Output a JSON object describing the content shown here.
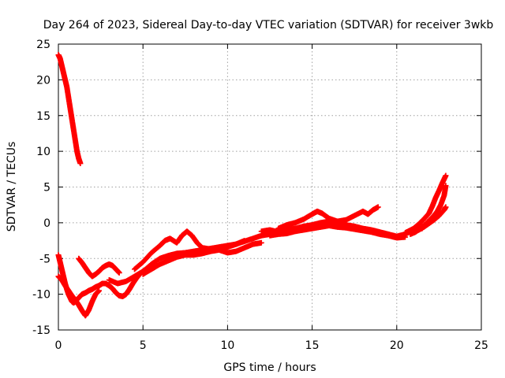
{
  "chart_data": {
    "type": "scatter",
    "title": "Day 264 of 2023, Sidereal Day-to-day VTEC variation (SDTVAR) for receiver 3wkb",
    "xlabel": "GPS time / hours",
    "ylabel": "SDTVAR / TECUs",
    "xlim": [
      0,
      25
    ],
    "ylim": [
      -15,
      25
    ],
    "xticks": [
      0,
      5,
      10,
      15,
      20,
      25
    ],
    "yticks": [
      -15,
      -10,
      -5,
      0,
      5,
      10,
      15,
      20,
      25
    ],
    "grid": true,
    "marker": "plus",
    "color": "#ff0000",
    "series": [
      {
        "name": "high-start arc",
        "x": [
          0.0,
          0.1,
          0.2,
          0.3,
          0.4,
          0.5,
          0.6,
          0.7,
          0.8,
          0.9,
          1.0,
          1.1,
          1.2,
          1.3
        ],
        "y": [
          23.5,
          23.0,
          22.0,
          21.0,
          20.0,
          19.0,
          17.5,
          16.0,
          14.5,
          13.0,
          11.5,
          10.0,
          9.0,
          8.3
        ]
      },
      {
        "name": "early dip",
        "x": [
          0.0,
          0.1,
          0.2,
          0.3,
          0.4,
          0.5,
          0.6,
          0.7,
          0.8,
          0.9,
          1.0,
          1.2,
          1.4,
          1.6,
          1.8,
          2.0,
          2.2,
          2.4,
          2.6,
          2.8,
          3.0,
          3.2,
          3.4,
          3.6,
          3.8,
          4.0,
          4.2,
          4.4,
          4.6,
          4.8,
          5.0
        ],
        "y": [
          -4.5,
          -5.5,
          -6.5,
          -7.5,
          -8.5,
          -9.3,
          -10.0,
          -10.5,
          -11.0,
          -11.2,
          -11.0,
          -10.5,
          -10.0,
          -9.8,
          -9.5,
          -9.3,
          -9.0,
          -8.8,
          -8.5,
          -8.5,
          -8.8,
          -9.2,
          -9.8,
          -10.2,
          -10.3,
          -10.0,
          -9.3,
          -8.5,
          -7.8,
          -7.2,
          -6.8
        ]
      },
      {
        "name": "early dip alt",
        "x": [
          0.0,
          0.2,
          0.4,
          0.6,
          0.8,
          1.0,
          1.2,
          1.4,
          1.6,
          1.8,
          2.0,
          2.2,
          2.4
        ],
        "y": [
          -7.5,
          -8.0,
          -8.8,
          -9.5,
          -10.2,
          -10.8,
          -11.5,
          -12.3,
          -13.0,
          -12.2,
          -11.0,
          -10.0,
          -9.5
        ]
      },
      {
        "name": "bump 1.2-3",
        "x": [
          1.2,
          1.4,
          1.6,
          1.8,
          2.0,
          2.2,
          2.4,
          2.6,
          2.8,
          3.0,
          3.2,
          3.4,
          3.6
        ],
        "y": [
          -5.0,
          -5.6,
          -6.3,
          -7.0,
          -7.5,
          -7.2,
          -6.8,
          -6.3,
          -6.0,
          -5.8,
          -6.0,
          -6.5,
          -7.0
        ]
      },
      {
        "name": "mid climb",
        "x": [
          3.0,
          3.5,
          4.0,
          4.5,
          5.0,
          5.5,
          6.0,
          6.5,
          7.0,
          7.5,
          8.0,
          8.5,
          9.0,
          9.5,
          10.0,
          10.5,
          11.0,
          11.5,
          12.0,
          12.5,
          13.0
        ],
        "y": [
          -8.0,
          -8.5,
          -8.2,
          -7.5,
          -6.8,
          -5.8,
          -5.0,
          -4.6,
          -4.3,
          -4.2,
          -4.0,
          -3.8,
          -3.6,
          -3.4,
          -3.2,
          -3.0,
          -2.6,
          -2.2,
          -1.8,
          -1.6,
          -1.4
        ]
      },
      {
        "name": "mid climb upper",
        "x": [
          4.5,
          5.0,
          5.5,
          6.0,
          6.3,
          6.6,
          7.0,
          7.3,
          7.6,
          7.9,
          8.2,
          8.5,
          9.0,
          9.5,
          10.0,
          10.5,
          11.0
        ],
        "y": [
          -6.5,
          -5.5,
          -4.2,
          -3.2,
          -2.5,
          -2.2,
          -2.8,
          -1.8,
          -1.2,
          -1.8,
          -2.8,
          -3.5,
          -3.7,
          -3.6,
          -3.4,
          -3.0,
          -2.5
        ]
      },
      {
        "name": "mid climb lower",
        "x": [
          5.0,
          5.5,
          6.0,
          6.5,
          7.0,
          7.5,
          8.0,
          8.5,
          9.0,
          9.5,
          10.0,
          10.5,
          11.0,
          11.5,
          12.0
        ],
        "y": [
          -7.2,
          -6.5,
          -5.8,
          -5.3,
          -4.8,
          -4.5,
          -4.5,
          -4.3,
          -4.0,
          -3.8,
          -4.2,
          -4.0,
          -3.5,
          -3.0,
          -2.8
        ]
      },
      {
        "name": "plateau",
        "x": [
          12.0,
          12.5,
          13.0,
          13.5,
          14.0,
          14.5,
          15.0,
          15.5,
          16.0,
          16.5,
          17.0,
          17.5,
          18.0,
          18.5,
          19.0,
          19.5,
          20.0,
          20.5,
          21.0,
          21.5
        ],
        "y": [
          -1.2,
          -1.0,
          -1.3,
          -1.0,
          -0.8,
          -0.5,
          -0.3,
          0.0,
          0.2,
          0.0,
          -0.3,
          -0.5,
          -0.8,
          -1.0,
          -1.3,
          -1.6,
          -1.9,
          -1.6,
          -1.0,
          -0.8
        ]
      },
      {
        "name": "plateau upper",
        "x": [
          13.0,
          13.5,
          14.0,
          14.5,
          15.0,
          15.3,
          15.6,
          16.0,
          16.5,
          17.0,
          17.5,
          18.0,
          18.3,
          18.6,
          18.9
        ],
        "y": [
          -0.8,
          -0.3,
          0.0,
          0.5,
          1.2,
          1.6,
          1.3,
          0.6,
          0.2,
          0.4,
          1.0,
          1.6,
          1.2,
          1.8,
          2.2
        ]
      },
      {
        "name": "plateau lower",
        "x": [
          12.5,
          13.0,
          13.5,
          14.0,
          14.5,
          15.0,
          15.5,
          16.0,
          16.5,
          17.0,
          17.5,
          18.0,
          18.5,
          19.0,
          19.5,
          20.0,
          20.5
        ],
        "y": [
          -1.8,
          -1.6,
          -1.5,
          -1.2,
          -1.0,
          -0.8,
          -0.6,
          -0.4,
          -0.6,
          -0.7,
          -0.9,
          -1.1,
          -1.3,
          -1.6,
          -1.8,
          -2.1,
          -2.0
        ]
      },
      {
        "name": "end rise",
        "x": [
          20.5,
          21.0,
          21.3,
          21.6,
          21.9,
          22.1,
          22.3,
          22.5,
          22.7,
          22.9
        ],
        "y": [
          -1.4,
          -0.8,
          -0.2,
          0.5,
          1.3,
          2.3,
          3.5,
          4.5,
          5.6,
          6.6
        ]
      },
      {
        "name": "end rise alt",
        "x": [
          20.8,
          21.1,
          21.4,
          21.7,
          22.0,
          22.2,
          22.4,
          22.6,
          22.8,
          22.9
        ],
        "y": [
          -1.6,
          -1.3,
          -0.8,
          -0.2,
          0.5,
          1.0,
          1.6,
          2.5,
          3.8,
          5.2
        ]
      },
      {
        "name": "end rise low",
        "x": [
          21.0,
          21.3,
          21.6,
          21.9,
          22.2,
          22.5,
          22.8,
          22.9
        ],
        "y": [
          -1.3,
          -1.0,
          -0.6,
          -0.1,
          0.4,
          1.0,
          1.8,
          2.2
        ]
      }
    ]
  }
}
